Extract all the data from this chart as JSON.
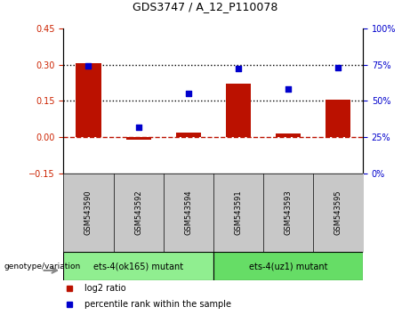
{
  "title": "GDS3747 / A_12_P110078",
  "samples": [
    "GSM543590",
    "GSM543592",
    "GSM543594",
    "GSM543591",
    "GSM543593",
    "GSM543595"
  ],
  "log2_ratio": [
    0.305,
    -0.012,
    0.018,
    0.22,
    0.015,
    0.155
  ],
  "percentile_rank": [
    74,
    32,
    55,
    72,
    58,
    73
  ],
  "groups": [
    {
      "label": "ets-4(ok165) mutant",
      "samples": [
        0,
        1,
        2
      ],
      "color": "#90EE90"
    },
    {
      "label": "ets-4(uz1) mutant",
      "samples": [
        3,
        4,
        5
      ],
      "color": "#66DD66"
    }
  ],
  "bar_color": "#BB1100",
  "dot_color": "#0000CC",
  "left_ylim": [
    -0.15,
    0.45
  ],
  "right_ylim": [
    0,
    100
  ],
  "left_yticks": [
    -0.15,
    0.0,
    0.15,
    0.3,
    0.45
  ],
  "right_yticks": [
    0,
    25,
    50,
    75,
    100
  ],
  "hline_values": [
    0.15,
    0.3
  ],
  "zero_line": 0,
  "background_plot": "#FFFFFF",
  "tick_label_color_left": "#CC2200",
  "tick_label_color_right": "#0000CC",
  "legend_log2": "log2 ratio",
  "legend_pct": "percentile rank within the sample"
}
